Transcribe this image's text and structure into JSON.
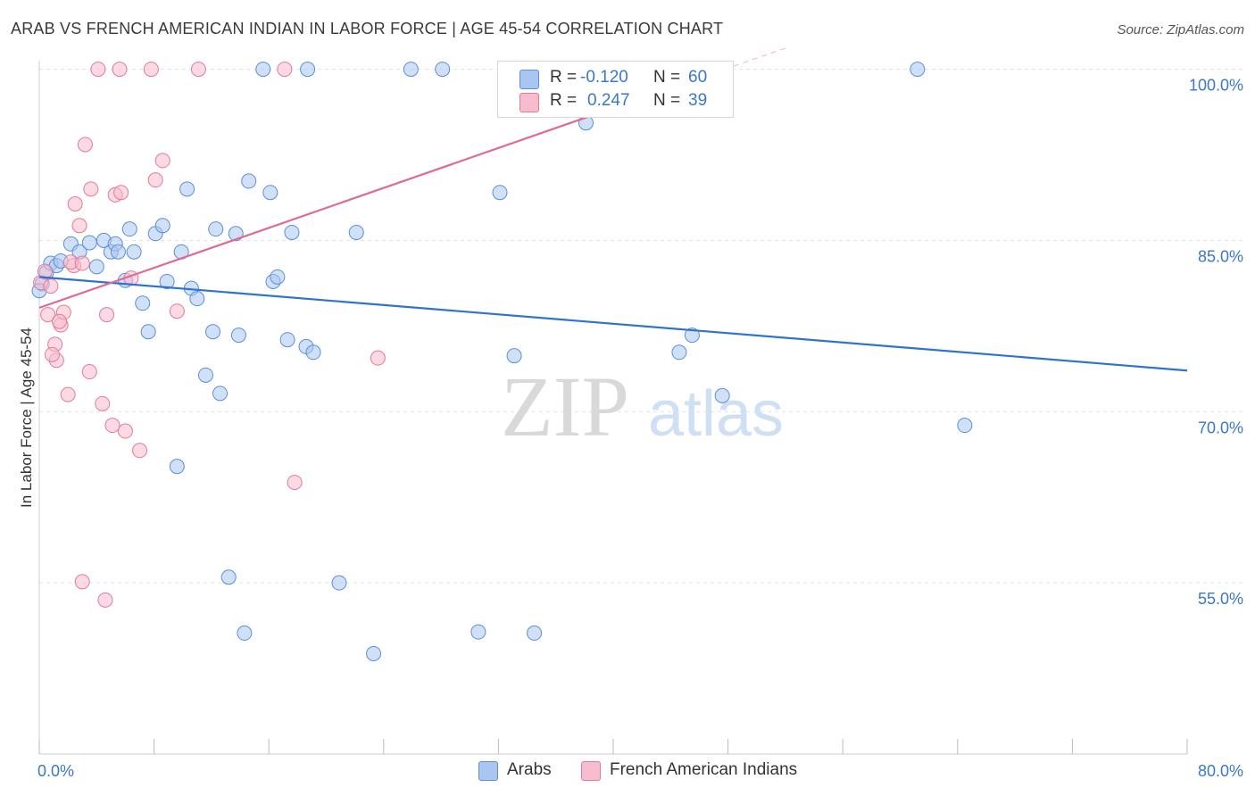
{
  "title": "ARAB VS FRENCH AMERICAN INDIAN IN LABOR FORCE | AGE 45-54 CORRELATION CHART",
  "source": "Source: ZipAtlas.com",
  "watermark": {
    "zip": "ZIP",
    "atlas": "atlas"
  },
  "colors": {
    "blue_fill": "#a9c6f0",
    "blue_stroke": "#5b8fd6",
    "blue_line": "#2f72d0",
    "pink_fill": "#f7bccd",
    "pink_stroke": "#e27a9b",
    "pink_line": "#e06a94",
    "axis_text": "#3a78c9",
    "grid": "#e3e3e3"
  },
  "legend": {
    "r_label": "R =",
    "n_label": "N =",
    "series": [
      {
        "name": "Arabs",
        "r": "-0.120",
        "n": "60"
      },
      {
        "name": "French American Indians",
        "r": "0.247",
        "n": "39"
      }
    ]
  },
  "chart_data": {
    "type": "scatter",
    "xlabel": "",
    "ylabel": "In Labor Force | Age 45-54",
    "x_range": [
      0,
      80
    ],
    "y_range": [
      40,
      102
    ],
    "x_tick_labels": {
      "min": "0.0%",
      "max": "80.0%"
    },
    "y_ticks": [
      {
        "value": 100,
        "label": "100.0%"
      },
      {
        "value": 85,
        "label": "85.0%"
      },
      {
        "value": 70,
        "label": "70.0%"
      },
      {
        "value": 55,
        "label": "55.0%"
      }
    ],
    "series": [
      {
        "name": "Arabs",
        "color": "blue",
        "trend": {
          "x": [
            0,
            80
          ],
          "y": [
            81.8,
            73.6
          ]
        },
        "points": [
          [
            0.2,
            81.2
          ],
          [
            0.5,
            82.2
          ],
          [
            0.8,
            83.0
          ],
          [
            1.2,
            82.8
          ],
          [
            1.5,
            83.2
          ],
          [
            2.2,
            84.7
          ],
          [
            2.8,
            84.0
          ],
          [
            3.5,
            84.8
          ],
          [
            4.0,
            82.7
          ],
          [
            4.5,
            85.0
          ],
          [
            5.0,
            84.0
          ],
          [
            5.3,
            84.7
          ],
          [
            5.5,
            84.0
          ],
          [
            6.0,
            81.5
          ],
          [
            6.3,
            86.0
          ],
          [
            6.6,
            84.0
          ],
          [
            7.2,
            79.5
          ],
          [
            7.6,
            77.0
          ],
          [
            8.1,
            85.6
          ],
          [
            8.6,
            86.3
          ],
          [
            8.9,
            81.4
          ],
          [
            9.6,
            65.2
          ],
          [
            9.9,
            84.0
          ],
          [
            10.3,
            89.5
          ],
          [
            10.6,
            80.8
          ],
          [
            11.0,
            79.9
          ],
          [
            11.6,
            73.2
          ],
          [
            12.1,
            77.0
          ],
          [
            12.3,
            86.0
          ],
          [
            12.6,
            71.6
          ],
          [
            13.2,
            55.5
          ],
          [
            13.7,
            85.6
          ],
          [
            13.9,
            76.7
          ],
          [
            14.3,
            50.6
          ],
          [
            14.6,
            90.2
          ],
          [
            15.6,
            100.0
          ],
          [
            16.1,
            89.2
          ],
          [
            16.3,
            81.4
          ],
          [
            16.6,
            81.8
          ],
          [
            17.3,
            76.3
          ],
          [
            17.6,
            85.7
          ],
          [
            18.6,
            75.7
          ],
          [
            18.7,
            100.0
          ],
          [
            19.1,
            75.2
          ],
          [
            20.9,
            55.0
          ],
          [
            22.1,
            85.7
          ],
          [
            23.3,
            48.8
          ],
          [
            25.9,
            100.0
          ],
          [
            28.1,
            100.0
          ],
          [
            30.6,
            50.7
          ],
          [
            32.1,
            89.2
          ],
          [
            33.1,
            74.9
          ],
          [
            34.5,
            50.6
          ],
          [
            38.1,
            95.3
          ],
          [
            44.6,
            75.2
          ],
          [
            45.5,
            76.7
          ],
          [
            47.6,
            71.4
          ],
          [
            61.2,
            100.0
          ],
          [
            64.5,
            68.8
          ],
          [
            0.0,
            80.6
          ]
        ]
      },
      {
        "name": "French American Indians",
        "color": "pink",
        "trend": {
          "x": [
            0,
            40
          ],
          "y": [
            79.1,
            96.6
          ]
        },
        "points": [
          [
            0.1,
            81.3
          ],
          [
            0.4,
            82.3
          ],
          [
            0.6,
            78.5
          ],
          [
            0.8,
            81.0
          ],
          [
            1.1,
            75.9
          ],
          [
            1.2,
            74.5
          ],
          [
            1.5,
            77.6
          ],
          [
            1.7,
            78.7
          ],
          [
            2.0,
            71.5
          ],
          [
            2.4,
            82.8
          ],
          [
            2.5,
            88.2
          ],
          [
            2.8,
            86.3
          ],
          [
            3.0,
            55.1
          ],
          [
            3.2,
            93.4
          ],
          [
            3.5,
            73.5
          ],
          [
            3.6,
            89.5
          ],
          [
            4.1,
            100.0
          ],
          [
            4.4,
            70.7
          ],
          [
            4.6,
            53.5
          ],
          [
            4.7,
            78.5
          ],
          [
            5.1,
            68.8
          ],
          [
            5.3,
            89.0
          ],
          [
            5.6,
            100.0
          ],
          [
            5.7,
            89.2
          ],
          [
            6.0,
            68.3
          ],
          [
            6.4,
            81.7
          ],
          [
            7.0,
            66.6
          ],
          [
            7.8,
            100.0
          ],
          [
            8.1,
            90.3
          ],
          [
            8.6,
            92.0
          ],
          [
            9.6,
            78.8
          ],
          [
            11.1,
            100.0
          ],
          [
            17.1,
            100.0
          ],
          [
            17.8,
            63.8
          ],
          [
            23.6,
            74.7
          ],
          [
            2.2,
            83.1
          ],
          [
            1.4,
            77.9
          ],
          [
            0.9,
            75.0
          ],
          [
            3.0,
            83.0
          ]
        ]
      }
    ]
  }
}
